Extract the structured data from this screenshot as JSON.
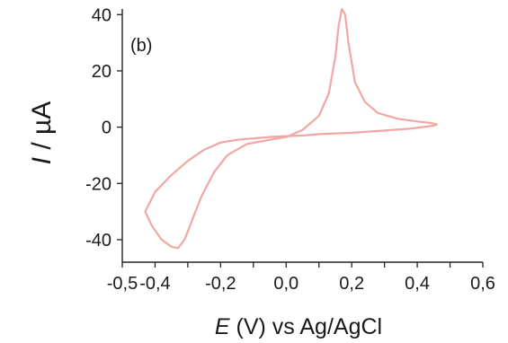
{
  "chart_data": {
    "type": "line",
    "panel_label": "(b)",
    "ylabel_symbol": "I",
    "ylabel_unit": " / µA",
    "xlabel_symbol": "E",
    "xlabel_unit": " (V) vs Ag/AgCl",
    "xlim": [
      -0.5,
      0.6
    ],
    "ylim": [
      -48,
      42
    ],
    "x_ticks": [
      -0.5,
      -0.4,
      -0.3,
      -0.2,
      -0.1,
      0.0,
      0.1,
      0.2,
      0.3,
      0.4,
      0.5,
      0.6
    ],
    "x_tick_labels": [
      "-0,5",
      "-0,4",
      "-0,2",
      "0,0",
      "0,2",
      "0,4",
      "0,6"
    ],
    "x_tick_label_values": [
      -0.5,
      -0.4,
      -0.2,
      0.0,
      0.2,
      0.4,
      0.6
    ],
    "y_ticks": [
      -40,
      -20,
      0,
      20,
      40
    ],
    "y_tick_labels": [
      "-40",
      "-20",
      "0",
      "20",
      "40"
    ],
    "grid": false,
    "line_color": "#f2a7a4",
    "series": [
      {
        "x": [
          -0.43,
          -0.41,
          -0.38,
          -0.35,
          -0.33,
          -0.31,
          -0.29,
          -0.26,
          -0.22,
          -0.18,
          -0.12,
          -0.05,
          0.0,
          0.05,
          0.1,
          0.13,
          0.15,
          0.16,
          0.17,
          0.18,
          0.19,
          0.21,
          0.24,
          0.28,
          0.34,
          0.4,
          0.44,
          0.46,
          0.45,
          0.38,
          0.3,
          0.2,
          0.1,
          0.05,
          0.0,
          -0.05,
          -0.1,
          -0.15,
          -0.2,
          -0.25,
          -0.3,
          -0.35,
          -0.4,
          -0.43
        ],
        "y": [
          -30,
          -35,
          -40,
          -42.5,
          -43,
          -40,
          -34,
          -25,
          -16,
          -10,
          -6,
          -4.5,
          -3.5,
          -1,
          4,
          12,
          25,
          36,
          42,
          40,
          30,
          16,
          9,
          5,
          3,
          2,
          1.5,
          1,
          0.5,
          -0.5,
          -1.2,
          -2,
          -2.5,
          -3,
          -3.2,
          -3.5,
          -4,
          -4.5,
          -5.5,
          -8,
          -12,
          -17,
          -23,
          -30
        ]
      }
    ]
  }
}
